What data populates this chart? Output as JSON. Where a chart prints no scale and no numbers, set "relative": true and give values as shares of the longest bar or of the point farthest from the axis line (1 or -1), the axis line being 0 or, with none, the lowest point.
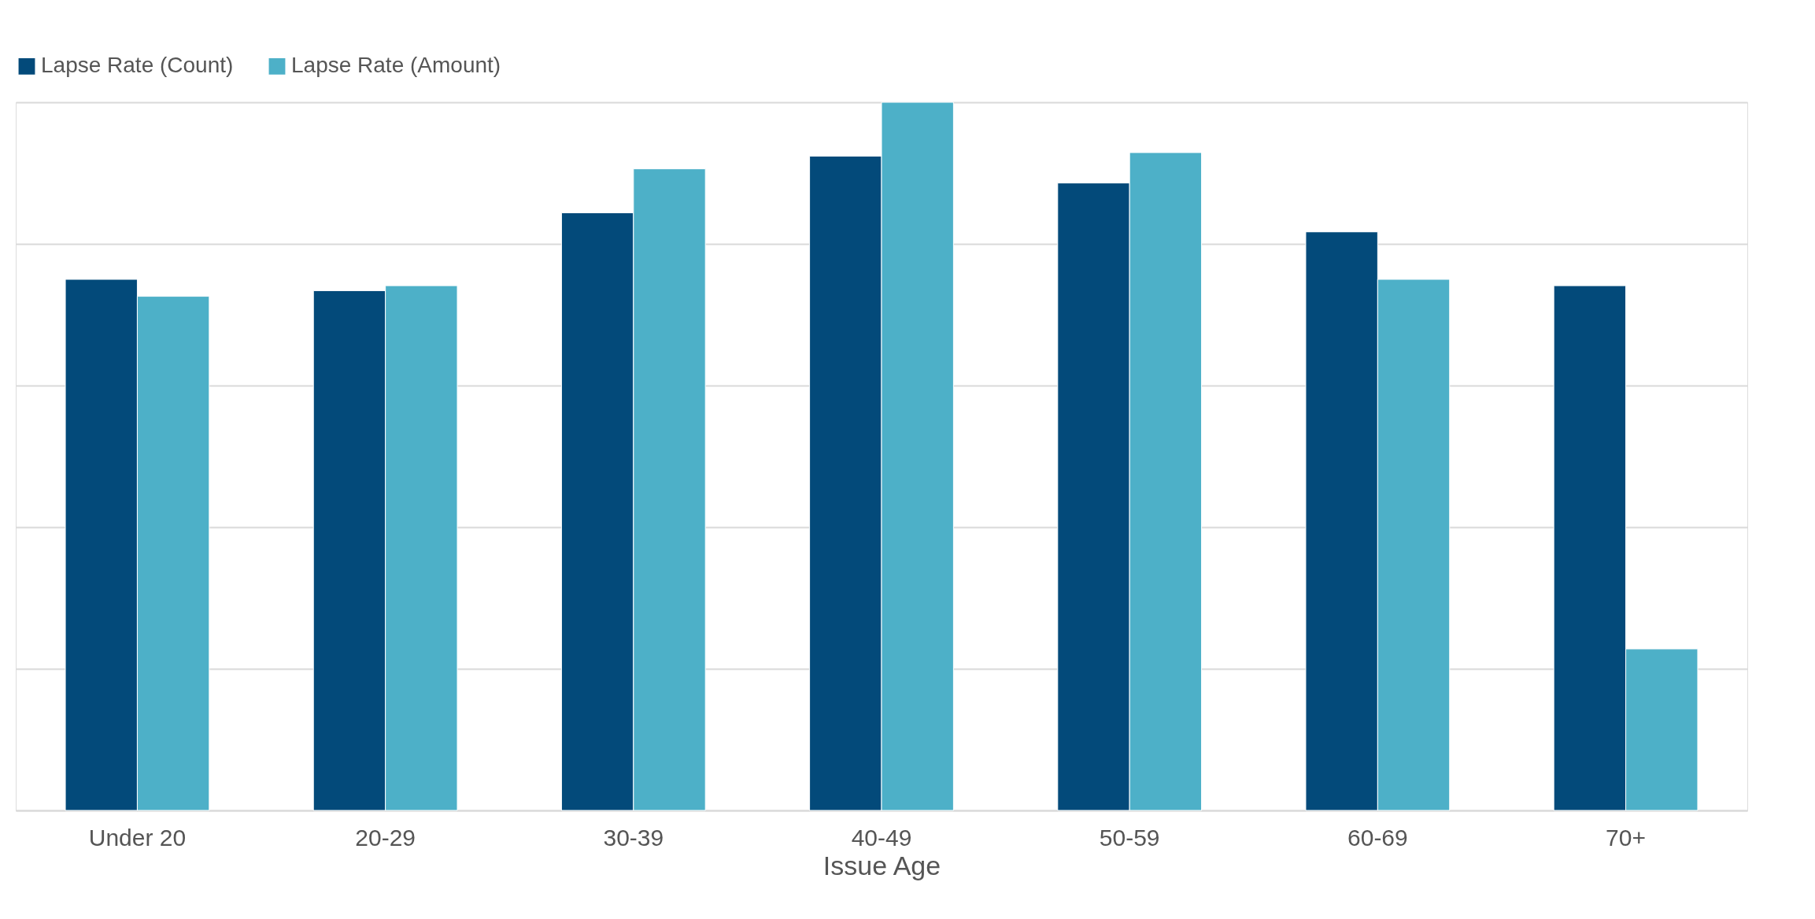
{
  "chart_data": {
    "type": "bar",
    "xlabel": "Issue Age",
    "categories": [
      "Under 20",
      "20-29",
      "30-39",
      "40-49",
      "50-59",
      "60-69",
      "70+"
    ],
    "series": [
      {
        "name": "Lapse Rate (Count)",
        "color": "#034a7a",
        "values": [
          0.75,
          0.734,
          0.844,
          0.924,
          0.886,
          0.817,
          0.741
        ]
      },
      {
        "name": "Lapse Rate (Amount)",
        "color": "#4db0c8",
        "values": [
          0.726,
          0.741,
          0.906,
          1,
          0.929,
          0.75,
          0.228
        ]
      }
    ],
    "relative": true,
    "grid": "y",
    "legend": "top left"
  }
}
